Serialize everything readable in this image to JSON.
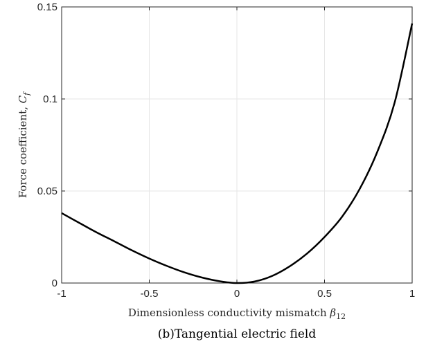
{
  "chart_data": {
    "type": "line",
    "xlabel_text": "Dimensionless conductivity mismatch ",
    "xlabel_symbol": "β",
    "xlabel_subscript": "12",
    "ylabel_text": "Force coefficient, ",
    "ylabel_symbol": "C",
    "ylabel_subscript": "f",
    "caption": "(b)Tangential electric field",
    "xlim": [
      -1,
      1
    ],
    "ylim": [
      0,
      0.15
    ],
    "x_ticks": [
      -1,
      -0.5,
      0,
      0.5,
      1
    ],
    "x_tick_labels": [
      "-1",
      "-0.5",
      "0",
      "0.5",
      "1"
    ],
    "y_ticks": [
      0,
      0.05,
      0.1,
      0.15
    ],
    "y_tick_labels": [
      "0",
      "0.05",
      "0.1",
      "0.15"
    ],
    "grid": true,
    "line_color": "#000000",
    "series": [
      {
        "x": [
          -1,
          -0.9,
          -0.8,
          -0.7,
          -0.6,
          -0.5,
          -0.4,
          -0.3,
          -0.2,
          -0.1,
          0,
          0.1,
          0.2,
          0.3,
          0.4,
          0.5,
          0.6,
          0.7,
          0.8,
          0.9,
          1
        ],
        "y": [
          0.038,
          0.0327,
          0.0275,
          0.0227,
          0.0178,
          0.0133,
          0.0093,
          0.0058,
          0.003,
          0.001,
          0,
          0.0008,
          0.0038,
          0.009,
          0.016,
          0.025,
          0.036,
          0.051,
          0.071,
          0.098,
          0.141
        ]
      }
    ]
  }
}
